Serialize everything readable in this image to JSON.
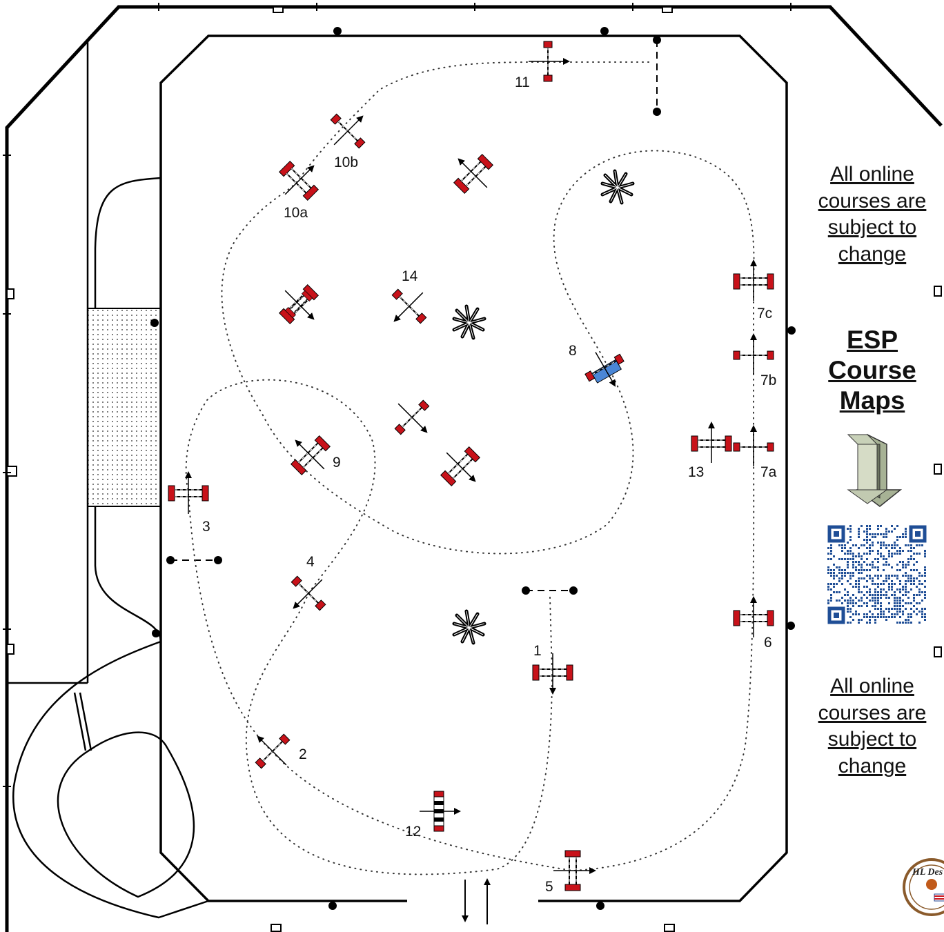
{
  "notice_top": "All online courses are subject to change",
  "brand": "ESP Course Maps",
  "notice_bottom": "All online courses are subject to change",
  "logo_text": "HL Des",
  "colors": {
    "rail": "#c8121a",
    "water": "#4a86d6",
    "qr": "#1f4e96",
    "arrow_box": "#a7b295",
    "line": "#000000"
  },
  "icons": {
    "download": "arrow-down-box-icon",
    "qr": "qr-code-icon",
    "plant": "plant-icon",
    "logo": "logo-seal-icon"
  },
  "labels": {
    "j1": "1",
    "j2": "2",
    "j3": "3",
    "j4": "4",
    "j5": "5",
    "j6": "6",
    "j7a": "7a",
    "j7b": "7b",
    "j7c": "7c",
    "j8": "8",
    "j9": "9",
    "j10a": "10a",
    "j10b": "10b",
    "j11": "11",
    "j12": "12",
    "j13": "13",
    "j14": "14"
  }
}
